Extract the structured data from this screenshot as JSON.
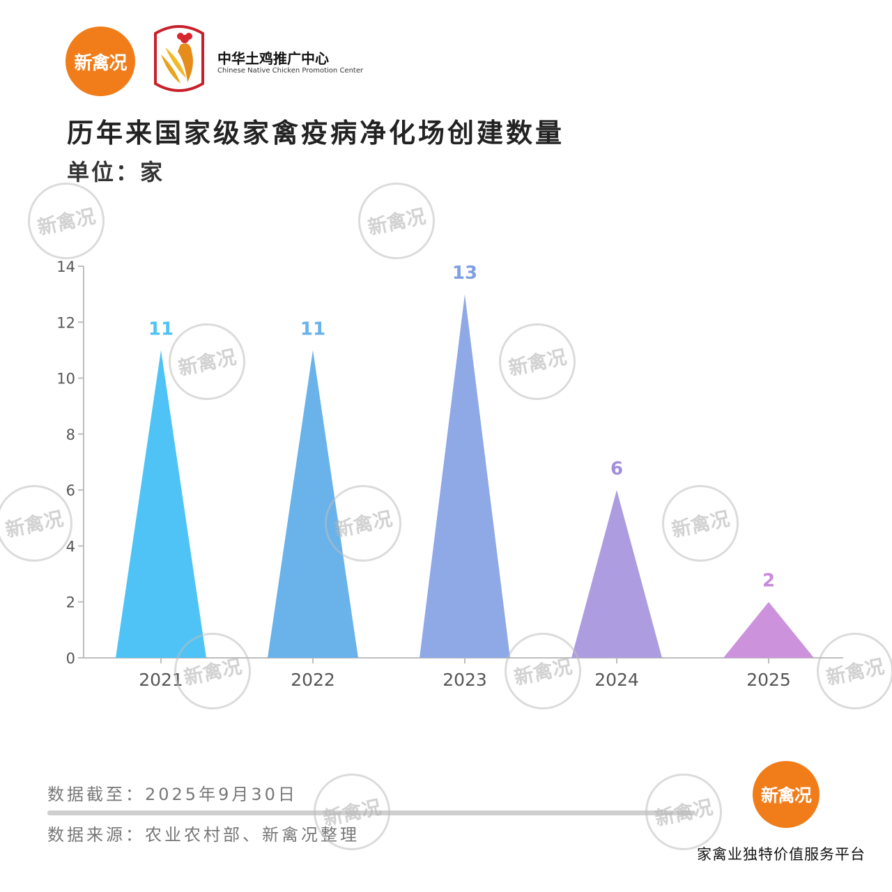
{
  "header": {
    "brand_logo_text": "新禽况",
    "org_name_cn": "中华土鸡推广中心",
    "org_name_en": "Chinese Native Chicken Promotion Center"
  },
  "title": "历年来国家级家禽疫病净化场创建数量",
  "unit": "单位：家",
  "footer": {
    "date": "数据截至：2025年9月30日",
    "source": "数据来源：农业农村部、新禽况整理",
    "logo_text": "新禽况",
    "tagline": "家禽业独特价值服务平台"
  },
  "watermark_text": "新禽况",
  "colors": {
    "brand_orange": "#f07d1a",
    "series_colors": [
      "#4fc3f5",
      "#69b2ea",
      "#8fa9e6",
      "#ad9de0",
      "#cc93dc"
    ],
    "label_colors": [
      "#4fc3f5",
      "#69b2ea",
      "#7f9fe3",
      "#a38ede",
      "#c88ad9"
    ]
  },
  "chart_data": {
    "type": "bar",
    "mark_shape": "triangle",
    "categories": [
      "2021",
      "2022",
      "2023",
      "2024",
      "2025"
    ],
    "values": [
      11,
      11,
      13,
      6,
      2
    ],
    "y_ticks": [
      "0",
      "2",
      "4",
      "6",
      "8",
      "10",
      "12",
      "14"
    ],
    "ylim": [
      0,
      14
    ],
    "grid": false,
    "legend": "none",
    "data_labels": true
  }
}
